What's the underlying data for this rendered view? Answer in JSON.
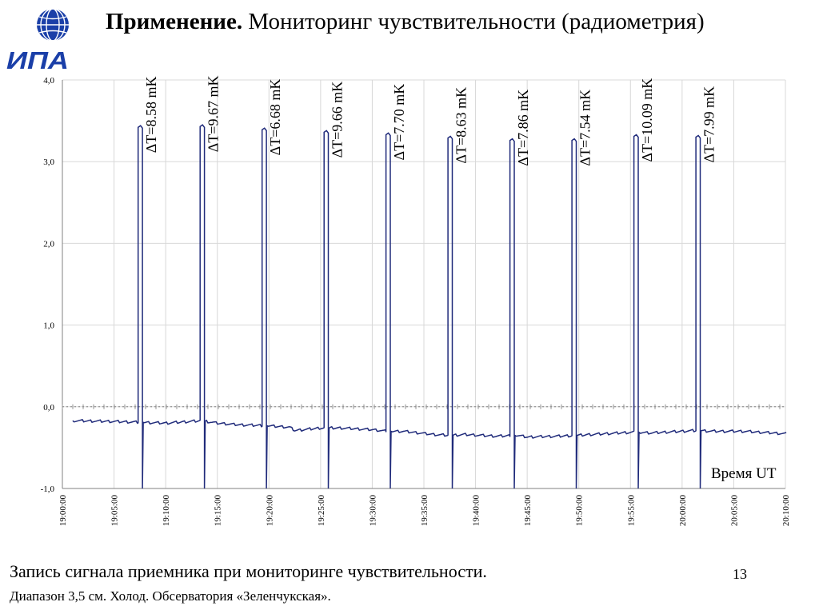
{
  "slide": {
    "title_bold": "Применение.",
    "title_rest": " Мониторинг чувствительности (радиометрия)",
    "caption": "Запись сигнала приемника при мониторинге чувствительности.",
    "subcaption": "Диапазон 3,5 см. Холод. Обсерватория «Зеленчукская».",
    "page_number": "13",
    "logo_text": "ИПА"
  },
  "colors": {
    "signal": "#1f2a7a",
    "grid": "#d8d8d8",
    "logo": "#1a3fa8"
  },
  "chart_data": {
    "type": "line",
    "title": "",
    "xlabel": "Время UT",
    "ylabel": "",
    "x_range": [
      "19:00:00",
      "20:10:00"
    ],
    "ylim": [
      -1.0,
      4.0
    ],
    "y_ticks": [
      "-1,0",
      "0,0",
      "1,0",
      "2,0",
      "3,0",
      "4,0"
    ],
    "x_ticks": [
      "19:00:00",
      "19:05:00",
      "19:10:00",
      "19:15:00",
      "19:20:00",
      "19:25:00",
      "19:30:00",
      "19:35:00",
      "19:40:00",
      "19:45:00",
      "19:50:00",
      "19:55:00",
      "20:00:00",
      "20:05:00",
      "20:10:00"
    ],
    "grid": true,
    "baseline": [
      [
        "19:01:00",
        -0.17
      ],
      [
        "19:05:00",
        -0.18
      ],
      [
        "19:07:30",
        -0.19
      ],
      [
        "19:10:00",
        -0.2
      ],
      [
        "19:13:30",
        -0.17
      ],
      [
        "19:15:00",
        -0.2
      ],
      [
        "19:17:00",
        -0.22
      ],
      [
        "19:19:30",
        -0.23
      ],
      [
        "19:22:00",
        -0.25
      ],
      [
        "19:22:30",
        -0.29
      ],
      [
        "19:25:00",
        -0.26
      ],
      [
        "19:27:00",
        -0.26
      ],
      [
        "19:30:00",
        -0.28
      ],
      [
        "19:31:30",
        -0.3
      ],
      [
        "19:33:00",
        -0.3
      ],
      [
        "19:36:00",
        -0.34
      ],
      [
        "19:37:30",
        -0.35
      ],
      [
        "19:39:00",
        -0.34
      ],
      [
        "19:42:00",
        -0.36
      ],
      [
        "19:44:00",
        -0.35
      ],
      [
        "19:45:00",
        -0.37
      ],
      [
        "19:48:00",
        -0.36
      ],
      [
        "19:50:00",
        -0.35
      ],
      [
        "19:51:00",
        -0.34
      ],
      [
        "19:54:00",
        -0.32
      ],
      [
        "19:55:30",
        -0.31
      ],
      [
        "19:57:00",
        -0.32
      ],
      [
        "20:00:00",
        -0.3
      ],
      [
        "20:01:30",
        -0.29
      ],
      [
        "20:03:00",
        -0.3
      ],
      [
        "20:06:00",
        -0.3
      ],
      [
        "20:10:00",
        -0.33
      ]
    ],
    "pulses": [
      {
        "start": "19:07:20",
        "end": "19:07:45",
        "top": 3.42,
        "label": "ΔT=8.58 mK"
      },
      {
        "start": "19:13:20",
        "end": "19:13:45",
        "top": 3.43,
        "label": "ΔT=9.67 mK"
      },
      {
        "start": "19:19:20",
        "end": "19:19:45",
        "top": 3.39,
        "label": "ΔT=6.68 mK"
      },
      {
        "start": "19:25:20",
        "end": "19:25:45",
        "top": 3.36,
        "label": "ΔT=9.66 mK"
      },
      {
        "start": "19:31:20",
        "end": "19:31:45",
        "top": 3.33,
        "label": "ΔT=7.70 mK"
      },
      {
        "start": "19:37:20",
        "end": "19:37:45",
        "top": 3.29,
        "label": "ΔT=8.63 mK"
      },
      {
        "start": "19:43:20",
        "end": "19:43:45",
        "top": 3.26,
        "label": "ΔT=7.86 mK"
      },
      {
        "start": "19:49:20",
        "end": "19:49:45",
        "top": 3.26,
        "label": "ΔT=7.54 mK"
      },
      {
        "start": "19:55:20",
        "end": "19:55:45",
        "top": 3.31,
        "label": "ΔT=10.09 mK"
      },
      {
        "start": "20:01:20",
        "end": "20:01:45",
        "top": 3.3,
        "label": "ΔT=7.99 mK"
      }
    ],
    "pulse_drop": -1.0
  }
}
